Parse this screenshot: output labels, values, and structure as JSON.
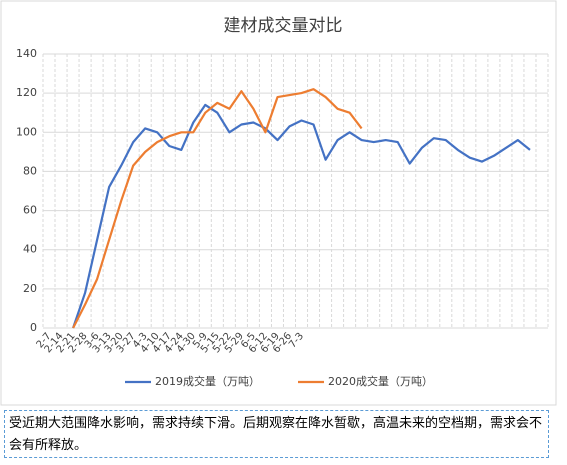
{
  "chart_data": {
    "type": "line",
    "title": "建材成交量对比",
    "categories": [
      "2-7",
      "2-14",
      "2-21",
      "2-28",
      "3-6",
      "3-13",
      "3-20",
      "3-27",
      "4-3",
      "4-10",
      "4-17",
      "4-24",
      "4-30",
      "5-9",
      "5-15",
      "5-22",
      "5-29",
      "6-5",
      "6-12",
      "6-19",
      "6-26",
      "7-3",
      null,
      null,
      null,
      null,
      null,
      null,
      null,
      null,
      null,
      null,
      null,
      null,
      null,
      null,
      null,
      null,
      null,
      null,
      null,
      null
    ],
    "series": [
      {
        "name": "2019成交量（万吨）",
        "color": "#4472c4",
        "values": [
          null,
          null,
          0,
          18,
          45,
          72,
          83,
          95,
          102,
          100,
          93,
          91,
          105,
          114,
          110,
          100,
          104,
          105,
          102,
          96,
          103,
          106,
          104,
          86,
          96,
          100,
          96,
          95,
          96,
          95,
          84,
          92,
          97,
          96,
          91,
          87,
          85,
          88,
          92,
          96,
          91,
          null
        ]
      },
      {
        "name": "2020成交量（万吨）",
        "color": "#ed7d31",
        "values": [
          null,
          null,
          0,
          12,
          25,
          45,
          65,
          83,
          90,
          95,
          98,
          100,
          100,
          110,
          115,
          112,
          121,
          112,
          100,
          118,
          119,
          120,
          122,
          118,
          112,
          110,
          102,
          null,
          null,
          null,
          null,
          null,
          null,
          null,
          null,
          null,
          null,
          null,
          null,
          null,
          null,
          null
        ]
      }
    ],
    "ylim": [
      0,
      140
    ],
    "yticks": [
      0,
      20,
      40,
      60,
      80,
      100,
      120,
      140
    ],
    "grid": true,
    "legend": "bottom",
    "caption": "受近期大范围降水影响，需求持续下滑。后期观察在降水暂歇，高温未来的空档期，需求会不会有所释放。"
  }
}
